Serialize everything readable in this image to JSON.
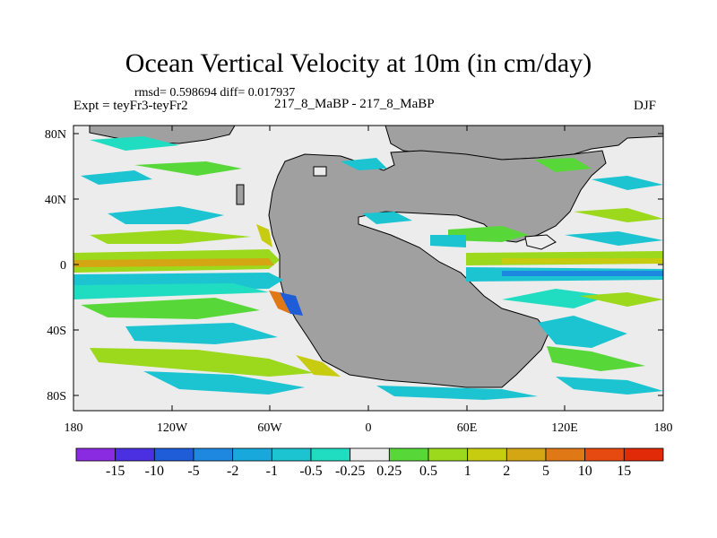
{
  "header": {
    "title": "Ocean Vertical Velocity at 10m (in cm/day)",
    "stats": "rmsd= 0.598694 diff= 0.017937",
    "experiment": "Expt = teyFr3-teyFr2",
    "period": "217_8_MaBP - 217_8_MaBP",
    "season": "DJF"
  },
  "axes": {
    "lat_ticks": [
      "80N",
      "40N",
      "0",
      "40S",
      "80S"
    ],
    "lon_ticks": [
      "180",
      "120W",
      "60W",
      "0",
      "60E",
      "120E",
      "180"
    ]
  },
  "colorbar": {
    "labels": [
      "-15",
      "-10",
      "-5",
      "-2",
      "-1",
      "-0.5",
      "-0.25",
      "0.25",
      "0.5",
      "1",
      "2",
      "5",
      "10",
      "15"
    ],
    "colors": [
      "#8a2be2",
      "#4a30e0",
      "#1e5cd8",
      "#1e88e0",
      "#19a8dc",
      "#1cc4d2",
      "#20dcc0",
      "#ececec",
      "#58d838",
      "#9cd81c",
      "#c8cc10",
      "#d4a614",
      "#e07816",
      "#e64a10",
      "#e02a08"
    ]
  },
  "palette": {
    "land": "#a0a0a0",
    "ocean_neutral": "#ececec"
  }
}
